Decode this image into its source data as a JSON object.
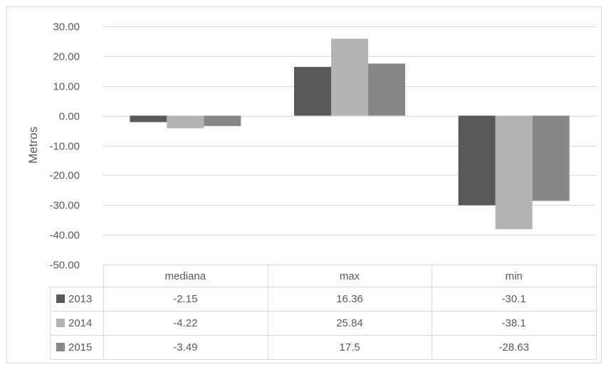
{
  "chart_data": {
    "type": "bar",
    "title": "",
    "xlabel": "",
    "ylabel": "Metros",
    "categories": [
      "mediana",
      "max",
      "min"
    ],
    "series": [
      {
        "name": "2013",
        "values": [
          -2.15,
          16.36,
          -30.1
        ],
        "labels": [
          "-2.15",
          "16.36",
          "-30.1"
        ],
        "color": "#595959"
      },
      {
        "name": "2014",
        "values": [
          -4.22,
          25.84,
          -38.1
        ],
        "labels": [
          "-4.22",
          "25.84",
          "-38.1"
        ],
        "color": "#b3b3b3"
      },
      {
        "name": "2015",
        "values": [
          -3.49,
          17.5,
          -28.63
        ],
        "labels": [
          "-3.49",
          "17.5",
          "-28.63"
        ],
        "color": "#878787"
      }
    ],
    "ylim": [
      -50,
      30
    ],
    "yticks": [
      "30.00",
      "20.00",
      "10.00",
      "0.00",
      "-10.00",
      "-20.00",
      "-30.00",
      "-40.00",
      "-50.00"
    ],
    "grid": true,
    "legend": "data-table",
    "gridline_color": "#d9d9d9",
    "border_color": "#d9d9d9"
  }
}
